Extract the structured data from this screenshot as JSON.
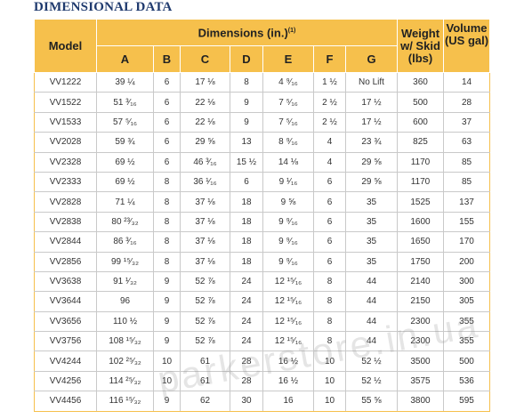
{
  "header": {
    "title": "DIMENSIONAL DATA"
  },
  "table": {
    "model_header": "Model",
    "dimensions_header": "Dimensions (in.)",
    "dimensions_note": "(1)",
    "weight_header": [
      "Weight",
      "w/ Skid",
      "(lbs)"
    ],
    "volume_header": [
      "Volume",
      "(US gal)"
    ],
    "subheader": [
      "A",
      "B",
      "C",
      "D",
      "E",
      "F",
      "G"
    ],
    "rows": [
      [
        "VV1222",
        "39 ¼",
        "6",
        "17 ⅛",
        "8",
        "4 ⁹⁄₁₆",
        "1 ½",
        "No Lift",
        "360",
        "14"
      ],
      [
        "VV1522",
        "51 ³⁄₁₆",
        "6",
        "22 ⅛",
        "9",
        "7 ⁵⁄₁₆",
        "2 ½",
        "17 ½",
        "500",
        "28"
      ],
      [
        "VV1533",
        "57 ⁵⁄₁₆",
        "6",
        "22 ⅛",
        "9",
        "7 ⁵⁄₁₆",
        "2 ½",
        "17 ½",
        "600",
        "37"
      ],
      [
        "VV2028",
        "59 ¾",
        "6",
        "29 ⅝",
        "13",
        "8 ⁹⁄₁₆",
        "4",
        "23 ¾",
        "825",
        "63"
      ],
      [
        "VV2328",
        "69 ½",
        "6",
        "46 ³⁄₁₆",
        "15 ½",
        "14 ⅛",
        "4",
        "29 ⅝",
        "1170",
        "85"
      ],
      [
        "VV2333",
        "69 ½",
        "8",
        "36 ¹⁄₁₆",
        "6",
        "9 ¹⁄₁₆",
        "6",
        "29 ⅝",
        "1170",
        "85"
      ],
      [
        "VV2828",
        "71 ¼",
        "8",
        "37 ⅛",
        "18",
        "9 ⅝",
        "6",
        "35",
        "1525",
        "137"
      ],
      [
        "VV2838",
        "80 ²³⁄₃₂",
        "8",
        "37 ⅛",
        "18",
        "9 ⁹⁄₁₆",
        "6",
        "35",
        "1600",
        "155"
      ],
      [
        "VV2844",
        "86 ³⁄₁₆",
        "8",
        "37 ⅛",
        "18",
        "9 ⁹⁄₁₆",
        "6",
        "35",
        "1650",
        "170"
      ],
      [
        "VV2856",
        "99 ¹⁵⁄₃₂",
        "8",
        "37 ⅛",
        "18",
        "9 ⁹⁄₁₆",
        "6",
        "35",
        "1750",
        "200"
      ],
      [
        "VV3638",
        "91 ¹⁄₃₂",
        "9",
        "52 ⅞",
        "24",
        "12 ¹⁵⁄₁₆",
        "8",
        "44",
        "2140",
        "300"
      ],
      [
        "VV3644",
        "96",
        "9",
        "52 ⅞",
        "24",
        "12 ¹⁵⁄₁₆",
        "8",
        "44",
        "2150",
        "305"
      ],
      [
        "VV3656",
        "110 ½",
        "9",
        "52 ⅞",
        "24",
        "12 ¹⁵⁄₁₆",
        "8",
        "44",
        "2300",
        "355"
      ],
      [
        "VV3756",
        "108 ¹⁵⁄₃₂",
        "9",
        "52 ⅞",
        "24",
        "12 ¹⁵⁄₁₆",
        "8",
        "44",
        "2300",
        "355"
      ],
      [
        "VV4244",
        "102 ²⁵⁄₃₂",
        "10",
        "61",
        "28",
        "16 ½",
        "10",
        "52 ½",
        "3500",
        "500"
      ],
      [
        "VV4256",
        "114 ²⁵⁄₃₂",
        "10",
        "61",
        "28",
        "16 ½",
        "10",
        "52 ½",
        "3575",
        "536"
      ],
      [
        "VV4456",
        "116 ¹⁵⁄₃₂",
        "9",
        "62",
        "30",
        "16",
        "10",
        "55 ⅝",
        "3800",
        "595"
      ]
    ]
  },
  "watermark": "parkerstore.in.ua"
}
